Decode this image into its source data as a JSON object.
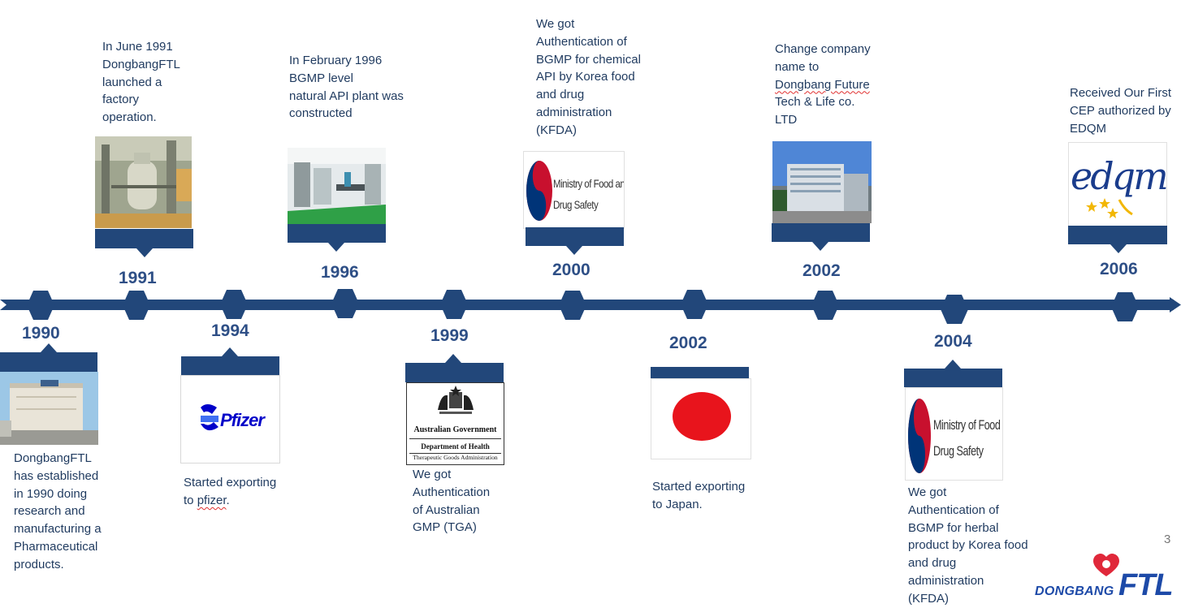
{
  "events_top": [
    {
      "year": "1991",
      "text": "In June 1991\nDongbangFTL\nlaunched a\nfactory\noperation."
    },
    {
      "year": "1996",
      "text": "In February 1996\nBGMP level\nnatural API plant was\nconstructed"
    },
    {
      "year": "2000",
      "text": "We got\nAuthentication of\nBGMP for chemical\nAPI by Korea food\nand drug\nadministration\n(KFDA)"
    },
    {
      "year": "2002",
      "text_a": "Change company\nname to",
      "text_b": "Dongbang Future",
      "text_c": "Tech & Life co.\nLTD"
    },
    {
      "year": "2006",
      "text": "Received Our First\nCEP authorized by\nEDQM"
    }
  ],
  "events_bottom": [
    {
      "year": "1990",
      "text": "DongbangFTL\nhas   established\nin 1990 doing\nresearch and\nmanufacturing a\nPharmaceutical\nproducts."
    },
    {
      "year": "1994",
      "text_a": "Started exporting\nto ",
      "text_b": "pfizer",
      "text_c": "."
    },
    {
      "year": "1999",
      "text": "We got\nAuthentication\nof Australian\nGMP (TGA)"
    },
    {
      "year": "2002",
      "text": "Started exporting\nto Japan."
    },
    {
      "year": "2004",
      "text": "We got\nAuthentication of\nBGMP for herbal\nproduct by Korea food\nand drug\nadministration\n(KFDA)"
    }
  ],
  "logos": {
    "mfds_line1": "Ministry of Food and",
    "mfds_line2": "Drug Safety",
    "pfizer": "Pfizer",
    "aus_gov": "Australian Government",
    "aus_dept": "Department of Health",
    "aus_tga": "Therapeutic Goods Administration",
    "edqm": "edqm"
  },
  "page_number": "3",
  "brand": {
    "prefix": "DONGBANG",
    "suffix": "FTL"
  },
  "colors": {
    "timeline": "#22477a",
    "text": "#1f3a5f",
    "year": "#2e4f86",
    "japan_red": "#e8141c"
  }
}
